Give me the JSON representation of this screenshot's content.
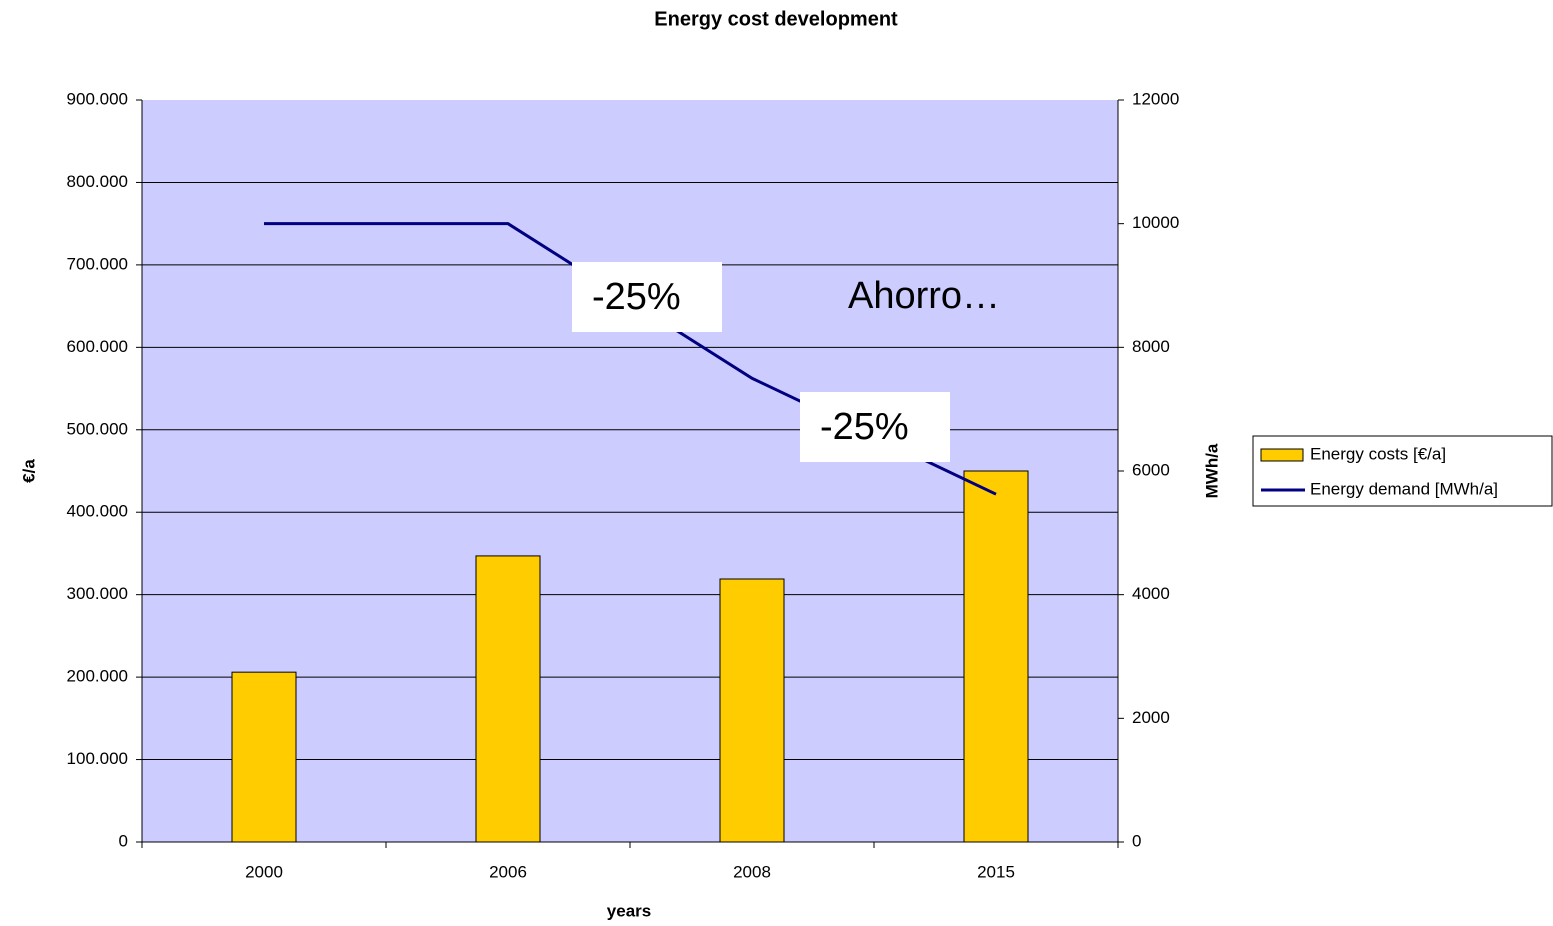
{
  "chart_data": {
    "type": "bar",
    "title": "Energy cost development",
    "xlabel": "years",
    "ylabel": "€/a",
    "y2label": "MWh/a",
    "categories": [
      "2000",
      "2006",
      "2008",
      "2015"
    ],
    "series": [
      {
        "name": "Energy costs [€/a]",
        "type": "bar",
        "color": "#ffcc00",
        "values": [
          206000,
          347000,
          319000,
          450000
        ]
      },
      {
        "name": "Energy demand [MWh/a]",
        "type": "line",
        "color": "#000080",
        "axis": "y2",
        "values": [
          10000,
          10000,
          7500,
          5625
        ]
      }
    ],
    "ylim": [
      0,
      900000
    ],
    "yticks": [
      0,
      {
        "value": 100000,
        "label": "100.000"
      },
      {
        "value": 200000,
        "label": "200.000"
      },
      {
        "value": 300000,
        "label": "300.000"
      },
      {
        "value": 400000,
        "label": "400.000"
      },
      {
        "value": 500000,
        "label": "500.000"
      },
      {
        "value": 600000,
        "label": "600.000"
      },
      {
        "value": 700000,
        "label": "700.000"
      },
      {
        "value": 800000,
        "label": "800.000"
      },
      {
        "value": 900000,
        "label": "900.000"
      }
    ],
    "y2lim": [
      0,
      12000
    ],
    "y2ticks": [
      0,
      2000,
      4000,
      6000,
      8000,
      10000,
      12000
    ],
    "grid": true,
    "background": "#ccccff",
    "legend": "right",
    "annotations": [
      "-25%",
      "Ahorro…",
      "-25%"
    ]
  }
}
